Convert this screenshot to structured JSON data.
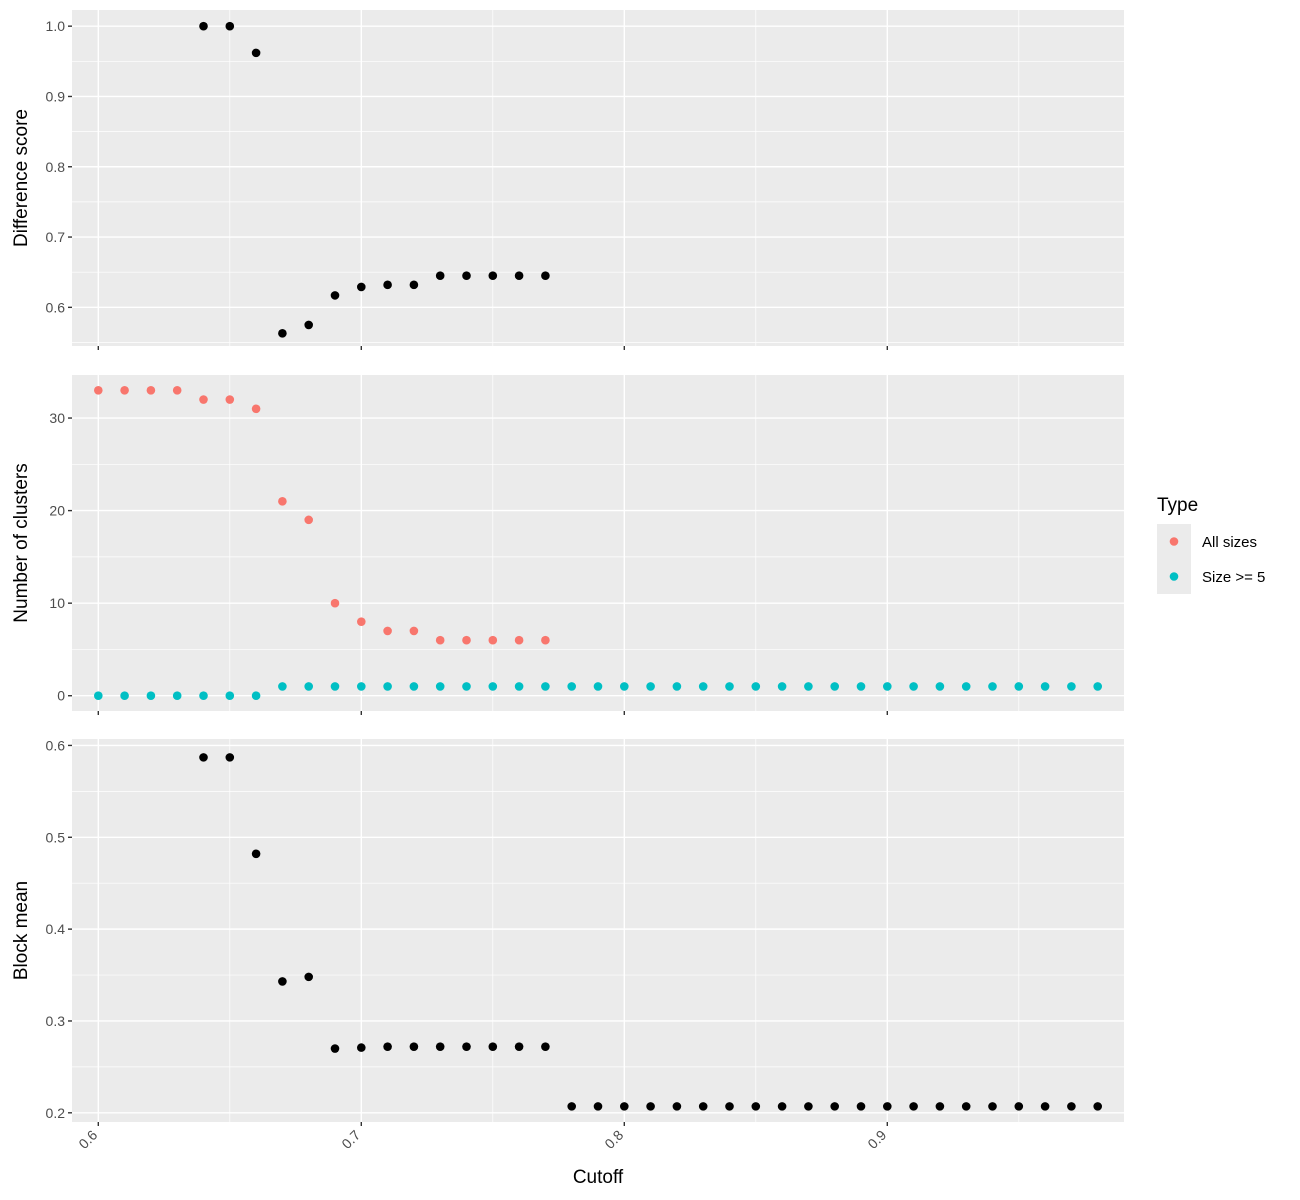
{
  "chart_data": {
    "type": "scatter",
    "xlabel": "Cutoff",
    "xlim": [
      0.59,
      0.99
    ],
    "x_ticks": [
      0.6,
      0.7,
      0.8,
      0.9
    ],
    "x_tick_labels": [
      "0.6",
      "0.7",
      "0.8",
      "0.9"
    ],
    "grid": true,
    "legend": {
      "title": "Type",
      "placement": "right",
      "entries": [
        {
          "label": "All sizes",
          "color": "#F8766D"
        },
        {
          "label": "Size >= 5",
          "color": "#00BFC4"
        }
      ]
    },
    "panels": [
      {
        "ylabel": "Difference score",
        "ylim": [
          0.545,
          1.023
        ],
        "y_ticks": [
          0.6,
          0.7,
          0.8,
          0.9,
          1.0
        ],
        "y_tick_labels": [
          "0.6",
          "0.7",
          "0.8",
          "0.9",
          "1.0"
        ],
        "show_x_labels": false,
        "series": [
          {
            "name": "",
            "color": "#000000",
            "x": [
              0.64,
              0.65,
              0.66,
              0.67,
              0.68,
              0.69,
              0.7,
              0.71,
              0.72,
              0.73,
              0.74,
              0.75,
              0.76,
              0.77
            ],
            "y": [
              1.0,
              1.0,
              0.962,
              0.563,
              0.575,
              0.617,
              0.629,
              0.632,
              0.632,
              0.645,
              0.645,
              0.645,
              0.645,
              0.645
            ]
          }
        ]
      },
      {
        "ylabel": "Number of clusters",
        "ylim": [
          -1.65,
          34.65
        ],
        "y_ticks": [
          0,
          10,
          20,
          30
        ],
        "y_tick_labels": [
          "0",
          "10",
          "20",
          "30"
        ],
        "show_x_labels": false,
        "series": [
          {
            "name": "All sizes",
            "color": "#F8766D",
            "x": [
              0.6,
              0.61,
              0.62,
              0.63,
              0.64,
              0.65,
              0.66,
              0.67,
              0.68,
              0.69,
              0.7,
              0.71,
              0.72,
              0.73,
              0.74,
              0.75,
              0.76,
              0.77
            ],
            "y": [
              33,
              33,
              33,
              33,
              32,
              32,
              31,
              21,
              19,
              10,
              8,
              7,
              7,
              6,
              6,
              6,
              6,
              6
            ]
          },
          {
            "name": "Size >= 5",
            "color": "#00BFC4",
            "x": [
              0.6,
              0.61,
              0.62,
              0.63,
              0.64,
              0.65,
              0.66,
              0.67,
              0.68,
              0.69,
              0.7,
              0.71,
              0.72,
              0.73,
              0.74,
              0.75,
              0.76,
              0.77,
              0.78,
              0.79,
              0.8,
              0.81,
              0.82,
              0.83,
              0.84,
              0.85,
              0.86,
              0.87,
              0.88,
              0.89,
              0.9,
              0.91,
              0.92,
              0.93,
              0.94,
              0.95,
              0.96,
              0.97,
              0.98
            ],
            "y": [
              0,
              0,
              0,
              0,
              0,
              0,
              0,
              1,
              1,
              1,
              1,
              1,
              1,
              1,
              1,
              1,
              1,
              1,
              1,
              1,
              1,
              1,
              1,
              1,
              1,
              1,
              1,
              1,
              1,
              1,
              1,
              1,
              1,
              1,
              1,
              1,
              1,
              1,
              1
            ]
          }
        ]
      },
      {
        "ylabel": "Block mean",
        "ylim": [
          0.19,
          0.607
        ],
        "y_ticks": [
          0.2,
          0.3,
          0.4,
          0.5,
          0.6
        ],
        "y_tick_labels": [
          "0.2",
          "0.3",
          "0.4",
          "0.5",
          "0.6"
        ],
        "show_x_labels": true,
        "series": [
          {
            "name": "",
            "color": "#000000",
            "x": [
              0.64,
              0.65,
              0.66,
              0.67,
              0.68,
              0.69,
              0.7,
              0.71,
              0.72,
              0.73,
              0.74,
              0.75,
              0.76,
              0.77,
              0.78,
              0.79,
              0.8,
              0.81,
              0.82,
              0.83,
              0.84,
              0.85,
              0.86,
              0.87,
              0.88,
              0.89,
              0.9,
              0.91,
              0.92,
              0.93,
              0.94,
              0.95,
              0.96,
              0.97,
              0.98
            ],
            "y": [
              0.587,
              0.587,
              0.482,
              0.343,
              0.348,
              0.27,
              0.271,
              0.272,
              0.272,
              0.272,
              0.272,
              0.272,
              0.272,
              0.272,
              0.207,
              0.207,
              0.207,
              0.207,
              0.207,
              0.207,
              0.207,
              0.207,
              0.207,
              0.207,
              0.207,
              0.207,
              0.207,
              0.207,
              0.207,
              0.207,
              0.207,
              0.207,
              0.207,
              0.207,
              0.207
            ]
          }
        ]
      }
    ]
  }
}
